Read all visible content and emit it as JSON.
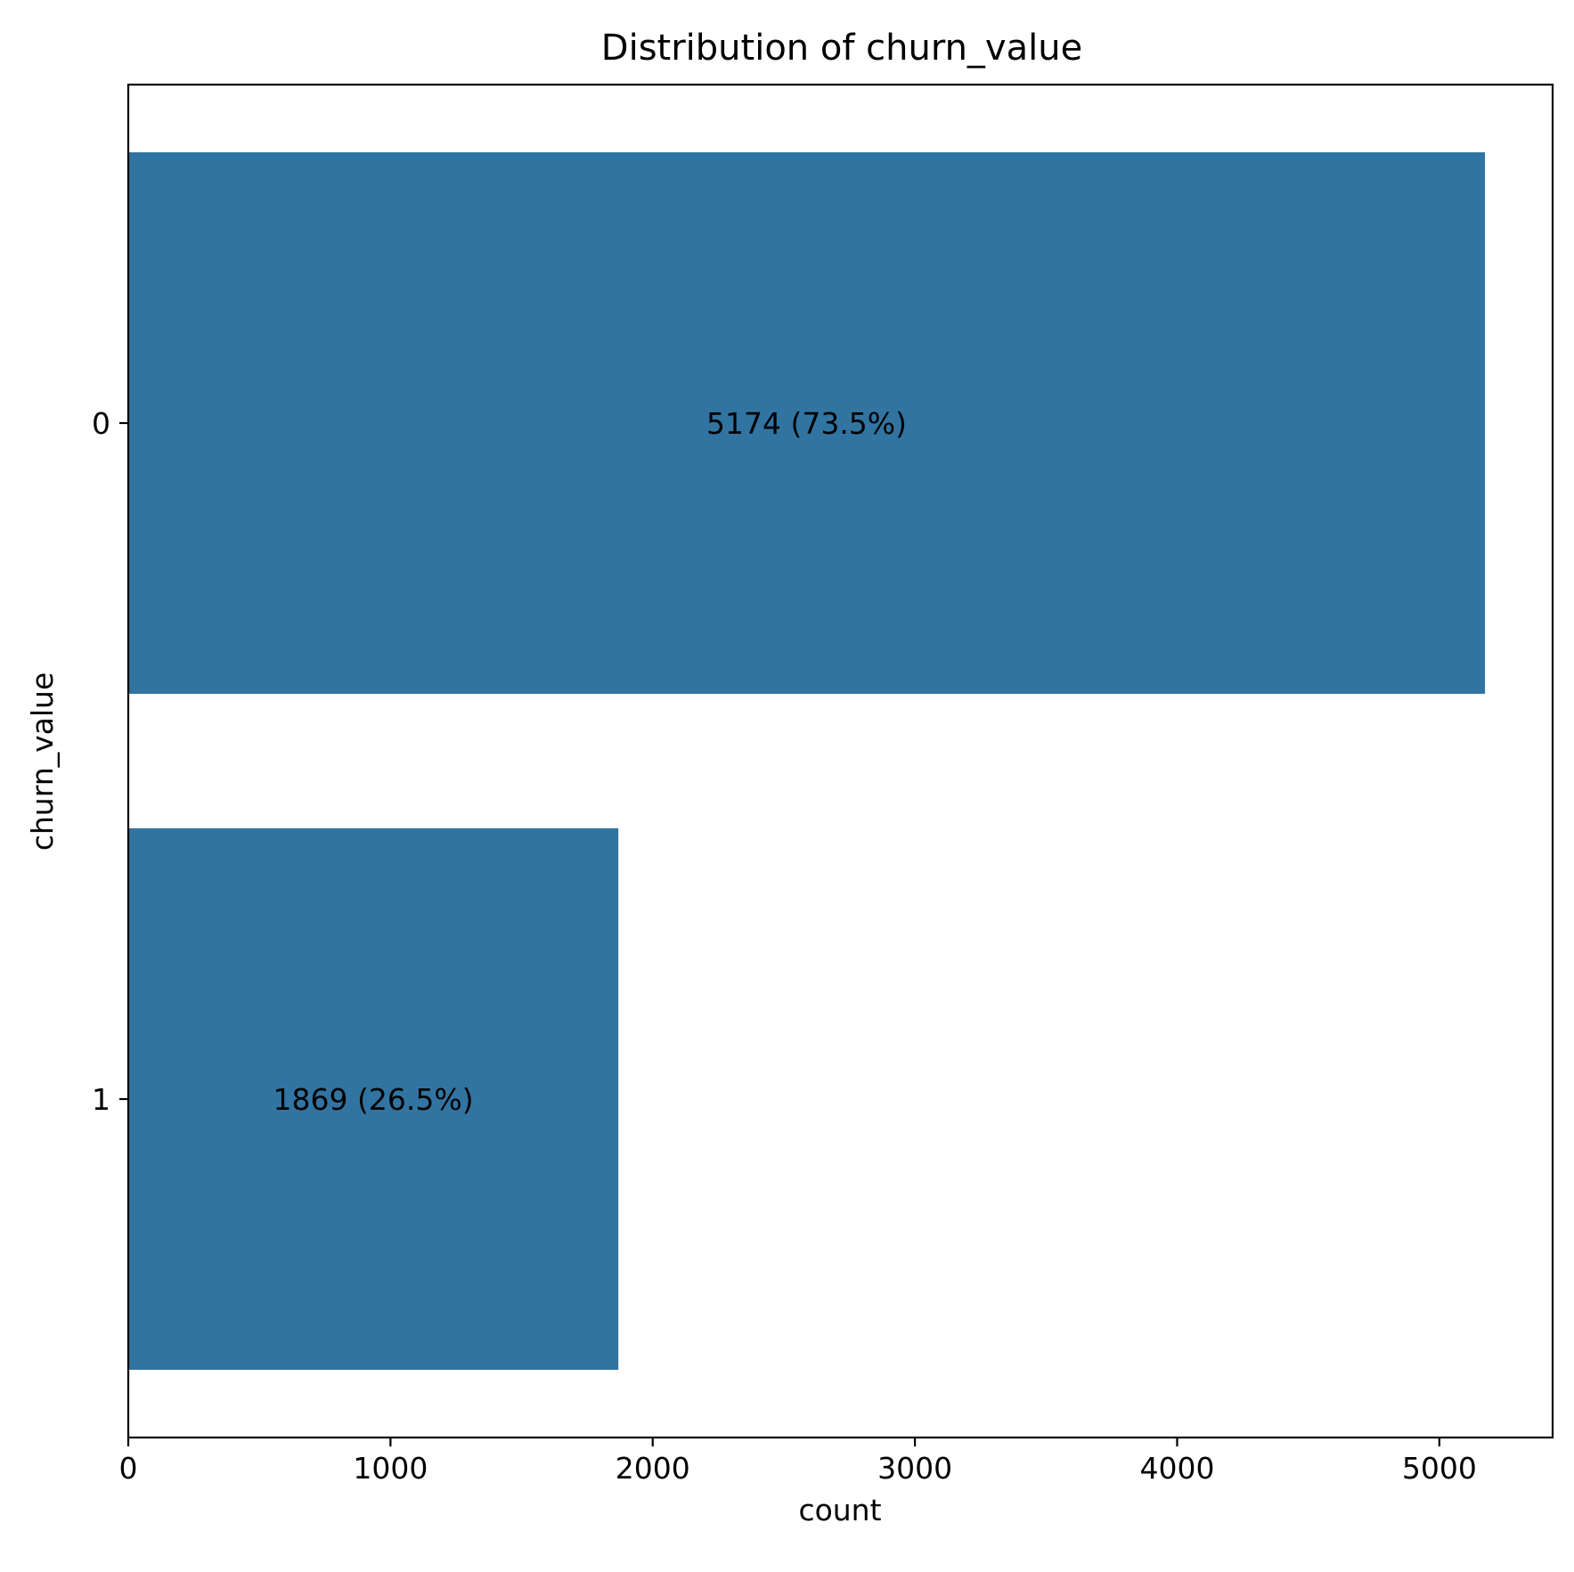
{
  "chart_data": {
    "type": "bar",
    "orientation": "horizontal",
    "title": "Distribution of churn_value",
    "xlabel": "count",
    "ylabel": "churn_value",
    "categories": [
      "0",
      "1"
    ],
    "values": [
      5174,
      1869
    ],
    "bar_labels": [
      "5174 (73.5%)",
      "1869 (26.5%)"
    ],
    "xlim": [
      0,
      5432
    ],
    "xticks": [
      0,
      1000,
      2000,
      3000,
      4000,
      5000
    ],
    "xtick_labels": [
      "0",
      "1000",
      "2000",
      "3000",
      "4000",
      "5000"
    ],
    "grid": false,
    "legend": false,
    "bar_color": "#3274a1"
  }
}
